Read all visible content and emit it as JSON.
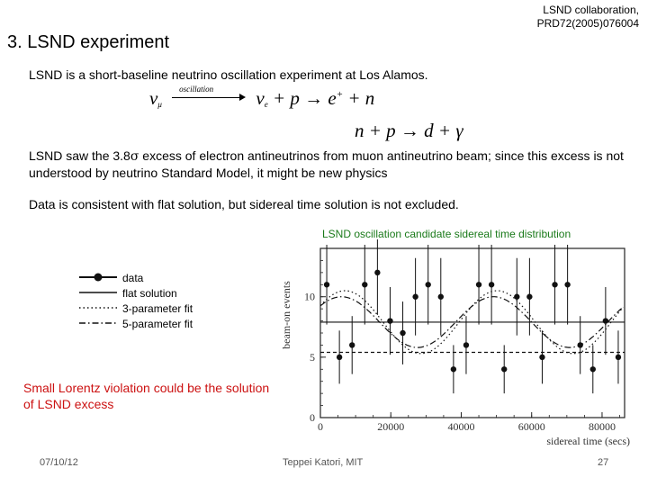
{
  "slide": {
    "title": "3. LSND experiment",
    "reference_line1": "LSND collaboration,",
    "reference_line2": "PRD72(2005)076004",
    "paragraph1": "LSND is a short-baseline neutrino oscillation experiment at Los Alamos.",
    "paragraph2_prefix": "LSND saw the 3.8",
    "paragraph2_sigma": "σ",
    "paragraph2_suffix": " excess of electron antineutrinos from muon antineutrino beam; since this excess is not understood by neutrino Standard Model, it might be new physics",
    "paragraph3": "Data is consistent with flat solution, but sidereal time solution is not excluded.",
    "equation1": {
      "nu": "ν",
      "nu_mu_sub": "μ",
      "oscillation_label": "oscillation",
      "nu_e_sub": "e",
      "rest": " + p → e",
      "plus": "+",
      "tail": " + n"
    },
    "equation2": "n + p → d + γ",
    "chart_caption": "LSND oscillation candidate sidereal time distribution",
    "lorentz_text": "Small Lorentz violation could be the solution of LSND excess",
    "footer_date": "07/10/12",
    "footer_author": "Teppei Katori, MIT",
    "footer_page": "27"
  },
  "chart_data": {
    "type": "scatter",
    "xlabel": "sidereal time (secs)",
    "ylabel": "beam-on events",
    "xlim": [
      0,
      86400
    ],
    "ylim": [
      0,
      14
    ],
    "xticks": [
      0,
      20000,
      40000,
      60000,
      80000
    ],
    "yticks": [
      0,
      5,
      10
    ],
    "xtick_labels": [
      "0",
      "20000",
      "40000",
      "60000",
      "80000"
    ],
    "ytick_labels": [
      "0",
      "5",
      "10"
    ],
    "legend_position": "left",
    "series": [
      {
        "name": "data",
        "style": "points-with-errorbars",
        "x": [
          1800,
          5400,
          9000,
          12600,
          16200,
          19800,
          23400,
          27000,
          30600,
          34200,
          37800,
          41400,
          45000,
          48600,
          52200,
          55800,
          59400,
          63000,
          66600,
          70200,
          73800,
          77400,
          81000,
          84600
        ],
        "y": [
          11,
          5,
          6,
          11,
          12,
          8,
          7,
          10,
          11,
          10,
          4,
          6,
          11,
          11,
          4,
          10,
          10,
          5,
          11,
          11,
          6,
          4,
          8,
          5
        ],
        "err": [
          3.3,
          2.2,
          2.4,
          3.3,
          3.5,
          2.8,
          2.6,
          3.2,
          3.3,
          3.2,
          2.0,
          2.4,
          3.3,
          3.3,
          2.0,
          3.2,
          3.2,
          2.2,
          3.3,
          3.3,
          2.4,
          2.0,
          2.8,
          2.2
        ]
      },
      {
        "name": "flat solution",
        "style": "solid",
        "value": 7.9
      },
      {
        "name": "3-parameter fit",
        "style": "dotted",
        "offset": 7.9,
        "amplitude": 2.6,
        "period": 43200,
        "peak": 7000
      },
      {
        "name": "5-parameter fit",
        "style": "dash-dot",
        "offset": 7.9,
        "amplitude": 2.1,
        "period": 43200,
        "peak": 6000
      },
      {
        "name": "reference",
        "style": "dashed",
        "value": 5.4
      }
    ],
    "colors": {
      "axis": "#222222",
      "data": "#111111",
      "frame_bg": "#ffffff",
      "label": "#333333"
    }
  }
}
